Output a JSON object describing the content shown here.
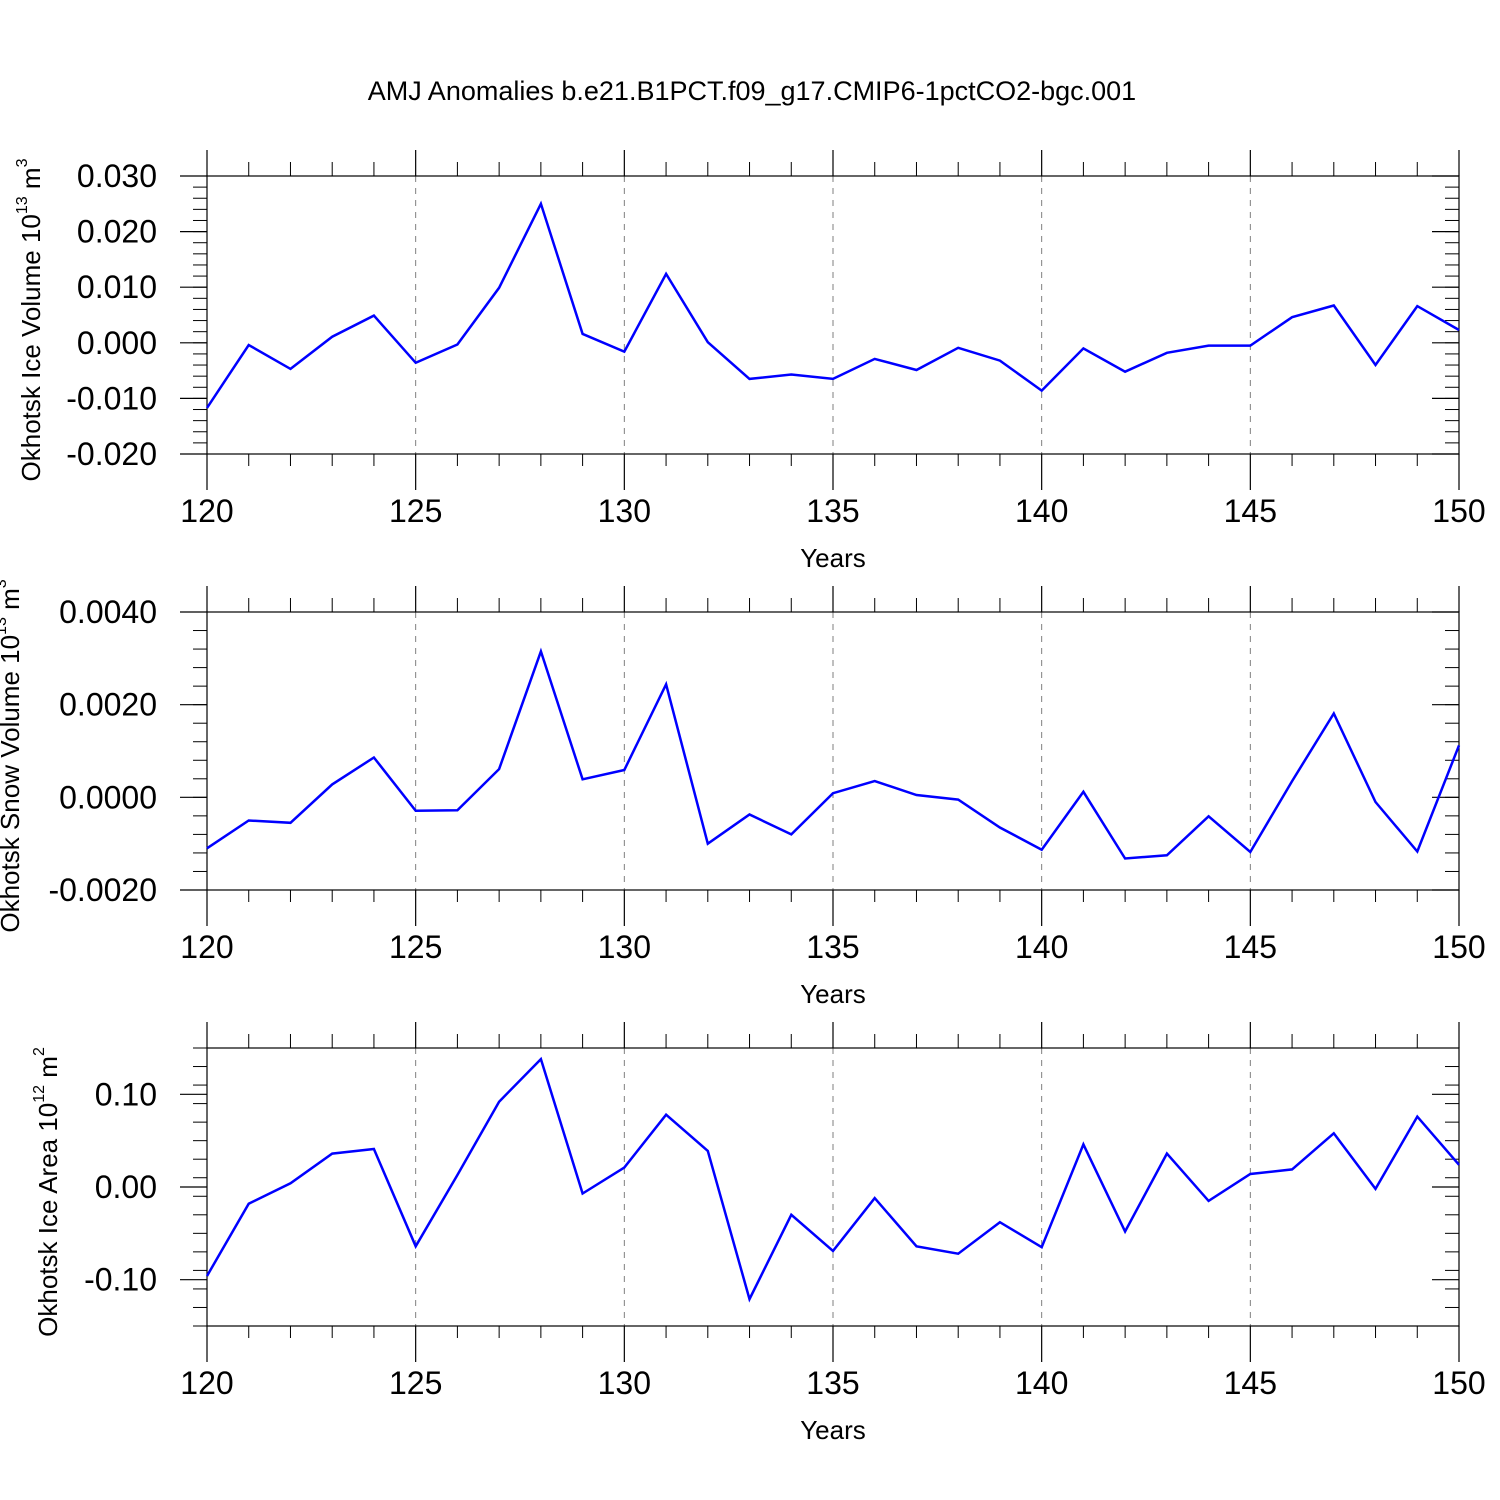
{
  "figure": {
    "title": "AMJ Anomalies b.e21.B1PCT.f09_g17.CMIP6-1pctCO2-bgc.001",
    "line_color": "#0000ff",
    "axis_color": "#000000",
    "grid_color": "#7f7f7f"
  },
  "chart_data": [
    {
      "type": "line",
      "title": "AMJ Anomalies b.e21.B1PCT.f09_g17.CMIP6-1pctCO2-bgc.001",
      "xlabel": "Years",
      "ylabel": {
        "main": "Okhotsk Ice Volume 10",
        "sup1": "13",
        "mid": " m",
        "sup2": "3"
      },
      "xlim": [
        120,
        150
      ],
      "ylim": [
        -0.02,
        0.03
      ],
      "xticks": [
        120,
        125,
        130,
        135,
        140,
        145,
        150
      ],
      "xtick_labels": [
        "120",
        "125",
        "130",
        "135",
        "140",
        "145",
        "150"
      ],
      "yticks": [
        -0.02,
        -0.01,
        0.0,
        0.01,
        0.02,
        0.03
      ],
      "ytick_labels": [
        "-0.020",
        "-0.010",
        "0.000",
        "0.010",
        "0.020",
        "0.030"
      ],
      "y_minor_step": 0.002,
      "grid": "vertical dashed at major x ticks",
      "x": [
        120,
        121,
        122,
        123,
        124,
        125,
        126,
        127,
        128,
        129,
        130,
        131,
        132,
        133,
        134,
        135,
        136,
        137,
        138,
        139,
        140,
        141,
        142,
        143,
        144,
        145,
        146,
        147,
        148,
        149,
        150
      ],
      "values": [
        -0.0117,
        -0.0004,
        -0.0047,
        0.0011,
        0.0049,
        -0.0036,
        -0.0003,
        0.0099,
        0.025,
        0.0016,
        -0.0016,
        0.0124,
        0.0001,
        -0.0065,
        -0.0057,
        -0.0065,
        -0.0029,
        -0.0049,
        -0.0009,
        -0.0032,
        -0.0086,
        -0.001,
        -0.0052,
        -0.0018,
        -0.0005,
        -0.0005,
        0.0046,
        0.0067,
        -0.004,
        0.0066,
        0.0023
      ]
    },
    {
      "type": "line",
      "xlabel": "Years",
      "ylabel": {
        "main": "Okhotsk Snow Volume 10",
        "sup1": "13",
        "mid": " m",
        "sup2": "3"
      },
      "xlim": [
        120,
        150
      ],
      "ylim": [
        -0.002,
        0.004
      ],
      "xticks": [
        120,
        125,
        130,
        135,
        140,
        145,
        150
      ],
      "xtick_labels": [
        "120",
        "125",
        "130",
        "135",
        "140",
        "145",
        "150"
      ],
      "yticks": [
        -0.002,
        0.0,
        0.002,
        0.004
      ],
      "ytick_labels": [
        "-0.0020",
        "0.0000",
        "0.0020",
        "0.0040"
      ],
      "y_minor_step": 0.0004,
      "grid": "vertical dashed at major x ticks",
      "x": [
        120,
        121,
        122,
        123,
        124,
        125,
        126,
        127,
        128,
        129,
        130,
        131,
        132,
        133,
        134,
        135,
        136,
        137,
        138,
        139,
        140,
        141,
        142,
        143,
        144,
        145,
        146,
        147,
        148,
        149,
        150
      ],
      "values": [
        -0.0011,
        -0.0005,
        -0.00055,
        0.00028,
        0.00086,
        -0.00029,
        -0.00028,
        0.00061,
        0.00315,
        0.00039,
        0.00059,
        0.00244,
        -0.001,
        -0.00037,
        -0.0008,
        9e-05,
        0.00035,
        5e-05,
        -5e-05,
        -0.00065,
        -0.00113,
        0.00012,
        -0.00132,
        -0.00125,
        -0.00041,
        -0.00118,
        0.00035,
        0.00181,
        -0.0001,
        -0.00117,
        0.00112
      ]
    },
    {
      "type": "line",
      "xlabel": "Years",
      "ylabel": {
        "main": "Okhotsk Ice Area 10",
        "sup1": "12",
        "mid": " m",
        "sup2": "2"
      },
      "xlim": [
        120,
        150
      ],
      "ylim": [
        -0.15,
        0.15
      ],
      "xticks": [
        120,
        125,
        130,
        135,
        140,
        145,
        150
      ],
      "xtick_labels": [
        "120",
        "125",
        "130",
        "135",
        "140",
        "145",
        "150"
      ],
      "yticks": [
        -0.1,
        0.0,
        0.1
      ],
      "ytick_labels": [
        "-0.10",
        "0.00",
        "0.10"
      ],
      "y_minor_step": 0.02,
      "grid": "vertical dashed at major x ticks",
      "x": [
        120,
        121,
        122,
        123,
        124,
        125,
        126,
        127,
        128,
        129,
        130,
        131,
        132,
        133,
        134,
        135,
        136,
        137,
        138,
        139,
        140,
        141,
        142,
        143,
        144,
        145,
        146,
        147,
        148,
        149,
        150
      ],
      "values": [
        -0.096,
        -0.018,
        0.004,
        0.036,
        0.041,
        -0.064,
        0.013,
        0.092,
        0.138,
        -0.007,
        0.021,
        0.078,
        0.039,
        -0.121,
        -0.03,
        -0.069,
        -0.012,
        -0.064,
        -0.072,
        -0.038,
        -0.065,
        0.046,
        -0.048,
        0.036,
        -0.015,
        0.014,
        0.019,
        0.058,
        -0.002,
        0.076,
        0.024
      ]
    }
  ]
}
